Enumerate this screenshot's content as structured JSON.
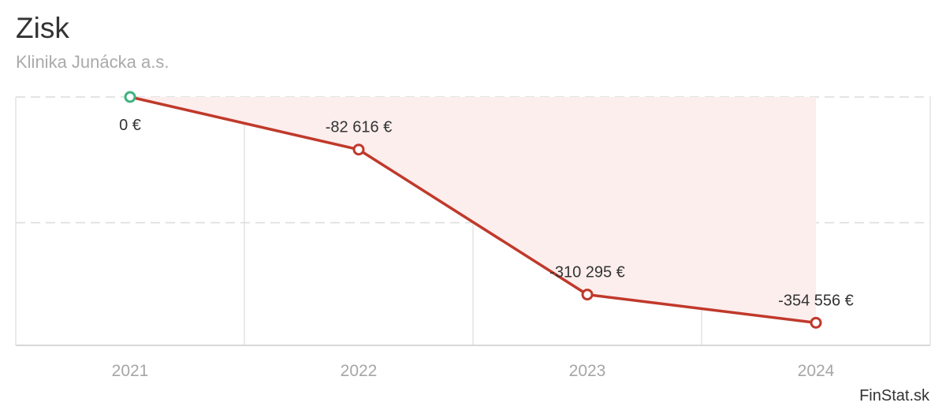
{
  "title": "Zisk",
  "subtitle": "Klinika Junácka a.s.",
  "credit": "FinStat.sk",
  "colors": {
    "line": "#c0392b",
    "area": "#fbeeed",
    "positive_marker": "#3fb27f",
    "negative_marker": "#c0392b",
    "grid": "#e3e3e3"
  },
  "chart_data": {
    "type": "line",
    "categories": [
      "2021",
      "2022",
      "2023",
      "2024"
    ],
    "series": [
      {
        "values": [
          0,
          -82616,
          -310295,
          -354556
        ],
        "labels": [
          "0 €",
          "-82 616 €",
          "-310 295 €",
          "-354 556 €"
        ]
      }
    ],
    "grid": true,
    "legend": "none",
    "area_fill": true
  }
}
